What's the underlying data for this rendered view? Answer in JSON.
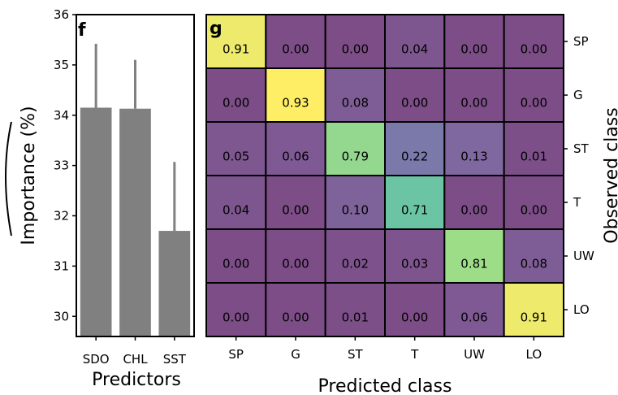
{
  "chart_data": [
    {
      "type": "bar",
      "panel_label": "f",
      "categories": [
        "SDO",
        "CHL",
        "SST"
      ],
      "values": [
        34.15,
        34.13,
        31.7
      ],
      "error_upper": [
        35.42,
        35.1,
        33.07
      ],
      "ylabel": "Importance (%)",
      "xlabel": "Predictors",
      "ylim": [
        29.6,
        36.0
      ],
      "yticks": [
        "30",
        "31",
        "32",
        "33",
        "34",
        "35",
        "36"
      ],
      "bar_color": "#808080"
    },
    {
      "type": "heatmap",
      "panel_label": "g",
      "xlabel": "Predicted class",
      "ylabel": "Observed class",
      "x_categories": [
        "SP",
        "G",
        "ST",
        "T",
        "UW",
        "LO"
      ],
      "y_categories": [
        "SP",
        "G",
        "ST",
        "T",
        "UW",
        "LO"
      ],
      "values": [
        [
          "0.91",
          "0.00",
          "0.00",
          "0.04",
          "0.00",
          "0.00"
        ],
        [
          "0.00",
          "0.93",
          "0.08",
          "0.00",
          "0.00",
          "0.00"
        ],
        [
          "0.05",
          "0.06",
          "0.79",
          "0.22",
          "0.13",
          "0.01"
        ],
        [
          "0.04",
          "0.00",
          "0.10",
          "0.71",
          "0.00",
          "0.00"
        ],
        [
          "0.00",
          "0.00",
          "0.02",
          "0.03",
          "0.81",
          "0.08"
        ],
        [
          "0.00",
          "0.00",
          "0.01",
          "0.00",
          "0.06",
          "0.91"
        ]
      ],
      "colormap": "viridis"
    }
  ]
}
